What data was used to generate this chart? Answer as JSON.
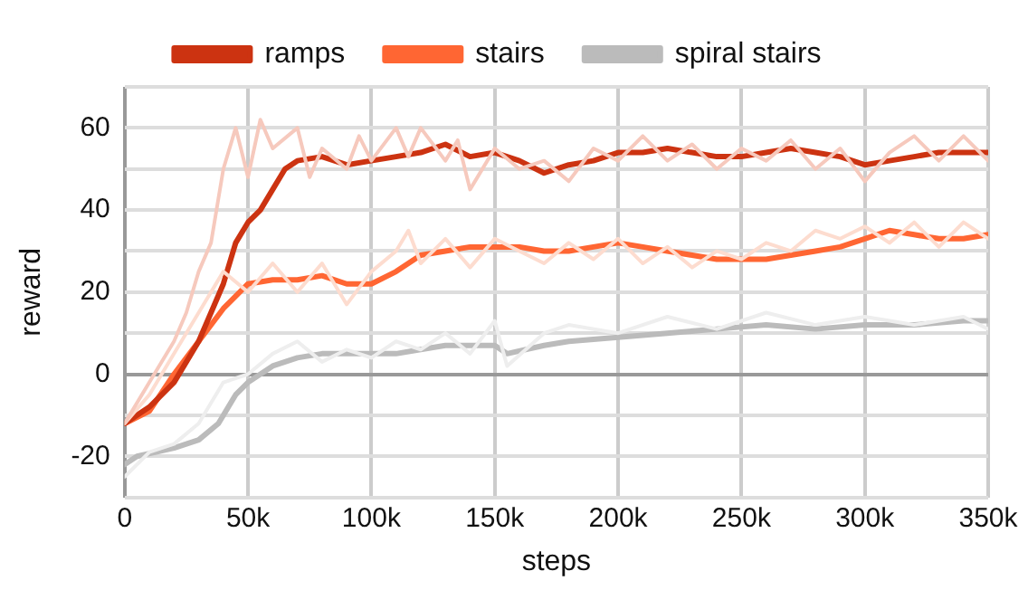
{
  "chart_data": {
    "type": "line",
    "xlabel": "steps",
    "ylabel": "reward",
    "legend": "top",
    "grid": true,
    "marker": "none",
    "line_style": "solid",
    "xlim": [
      0,
      350000
    ],
    "ylim": [
      -30,
      70
    ],
    "xticks": [
      0,
      {
        "value": 50000,
        "label": "50k"
      },
      {
        "value": 100000,
        "label": "100k"
      },
      {
        "value": 150000,
        "label": "150k"
      },
      {
        "value": 200000,
        "label": "200k"
      },
      {
        "value": 250000,
        "label": "250k"
      },
      {
        "value": 300000,
        "label": "300k"
      },
      {
        "value": 350000,
        "label": "350k"
      }
    ],
    "yticks": [
      {
        "value": -30,
        "label": null
      },
      -20,
      {
        "value": -10,
        "label": null
      },
      0,
      {
        "value": 10,
        "label": null
      },
      20,
      {
        "value": 30,
        "label": null
      },
      40,
      {
        "value": 50,
        "label": null
      },
      60,
      {
        "value": 70,
        "label": null
      }
    ],
    "series": [
      {
        "color": "#f6c9bd",
        "x": [
          0,
          10000,
          20000,
          25000,
          30000,
          35000,
          40000,
          45000,
          50000,
          55000,
          60000,
          70000,
          75000,
          80000,
          90000,
          95000,
          100000,
          110000,
          115000,
          120000,
          130000,
          135000,
          140000,
          150000,
          160000,
          170000,
          180000,
          190000,
          200000,
          210000,
          220000,
          230000,
          240000,
          250000,
          260000,
          270000,
          280000,
          290000,
          300000,
          310000,
          320000,
          330000,
          340000,
          350000
        ],
        "values": [
          -12,
          -2,
          8,
          15,
          25,
          32,
          50,
          60,
          48,
          62,
          55,
          60,
          48,
          55,
          50,
          58,
          52,
          60,
          53,
          60,
          52,
          57,
          45,
          55,
          50,
          52,
          47,
          55,
          52,
          58,
          52,
          56,
          50,
          55,
          52,
          57,
          50,
          55,
          47,
          54,
          58,
          52,
          58,
          52
        ]
      },
      {
        "color": "#fddccf",
        "x": [
          0,
          10000,
          20000,
          30000,
          40000,
          50000,
          60000,
          70000,
          80000,
          90000,
          100000,
          110000,
          115000,
          120000,
          130000,
          140000,
          150000,
          160000,
          170000,
          180000,
          190000,
          200000,
          210000,
          220000,
          230000,
          240000,
          250000,
          260000,
          270000,
          280000,
          290000,
          300000,
          310000,
          320000,
          330000,
          340000,
          350000
        ],
        "values": [
          -12,
          -5,
          5,
          15,
          25,
          20,
          27,
          20,
          27,
          17,
          25,
          30,
          35,
          27,
          33,
          26,
          33,
          30,
          27,
          32,
          28,
          33,
          27,
          31,
          26,
          30,
          28,
          32,
          30,
          35,
          33,
          36,
          32,
          37,
          31,
          37,
          33
        ]
      },
      {
        "color": "#eeeeee",
        "x": [
          0,
          10000,
          20000,
          30000,
          40000,
          50000,
          60000,
          70000,
          80000,
          90000,
          100000,
          110000,
          120000,
          130000,
          140000,
          150000,
          155000,
          170000,
          180000,
          200000,
          220000,
          240000,
          260000,
          280000,
          300000,
          320000,
          340000,
          350000
        ],
        "values": [
          -25,
          -19,
          -17,
          -12,
          -2,
          0,
          5,
          8,
          3,
          6,
          4,
          8,
          6,
          10,
          5,
          13,
          2,
          10,
          12,
          10,
          14,
          11,
          15,
          12,
          14,
          12,
          14,
          11
        ]
      },
      {
        "name": "ramps",
        "color": "#cc3311",
        "x": [
          0,
          10000,
          20000,
          30000,
          40000,
          45000,
          50000,
          55000,
          60000,
          65000,
          70000,
          80000,
          90000,
          100000,
          110000,
          120000,
          130000,
          140000,
          150000,
          160000,
          170000,
          180000,
          190000,
          200000,
          210000,
          220000,
          230000,
          240000,
          250000,
          260000,
          270000,
          280000,
          290000,
          300000,
          310000,
          320000,
          330000,
          340000,
          350000
        ],
        "values": [
          -12,
          -8,
          -2,
          8,
          22,
          32,
          37,
          40,
          45,
          50,
          52,
          53,
          51,
          52,
          53,
          54,
          56,
          53,
          54,
          52,
          49,
          51,
          52,
          54,
          54,
          55,
          54,
          53,
          53,
          54,
          55,
          54,
          53,
          51,
          52,
          53,
          54,
          54,
          54
        ]
      },
      {
        "name": "stairs",
        "color": "#ff6633",
        "x": [
          0,
          10000,
          20000,
          30000,
          40000,
          50000,
          60000,
          70000,
          80000,
          90000,
          100000,
          110000,
          120000,
          130000,
          140000,
          150000,
          160000,
          170000,
          180000,
          190000,
          200000,
          210000,
          220000,
          230000,
          240000,
          250000,
          260000,
          270000,
          280000,
          290000,
          300000,
          310000,
          320000,
          330000,
          340000,
          350000
        ],
        "values": [
          -12,
          -9,
          0,
          8,
          16,
          22,
          23,
          23,
          24,
          22,
          22,
          25,
          29,
          30,
          31,
          31,
          31,
          30,
          30,
          31,
          32,
          31,
          30,
          29,
          28,
          28,
          28,
          29,
          30,
          31,
          33,
          35,
          34,
          33,
          33,
          34
        ]
      },
      {
        "name": "spiral stairs",
        "color": "#bbbbbb",
        "x": [
          0,
          5000,
          20000,
          30000,
          38000,
          45000,
          50000,
          60000,
          70000,
          80000,
          90000,
          100000,
          110000,
          120000,
          130000,
          140000,
          150000,
          155000,
          170000,
          180000,
          200000,
          220000,
          240000,
          260000,
          280000,
          300000,
          320000,
          340000,
          350000
        ],
        "values": [
          -22,
          -20,
          -18,
          -16,
          -12,
          -5,
          -2,
          2,
          4,
          5,
          5,
          5,
          5,
          6,
          7,
          7,
          7,
          5,
          7,
          8,
          9,
          10,
          11,
          12,
          11,
          12,
          12,
          13,
          13
        ]
      }
    ]
  }
}
